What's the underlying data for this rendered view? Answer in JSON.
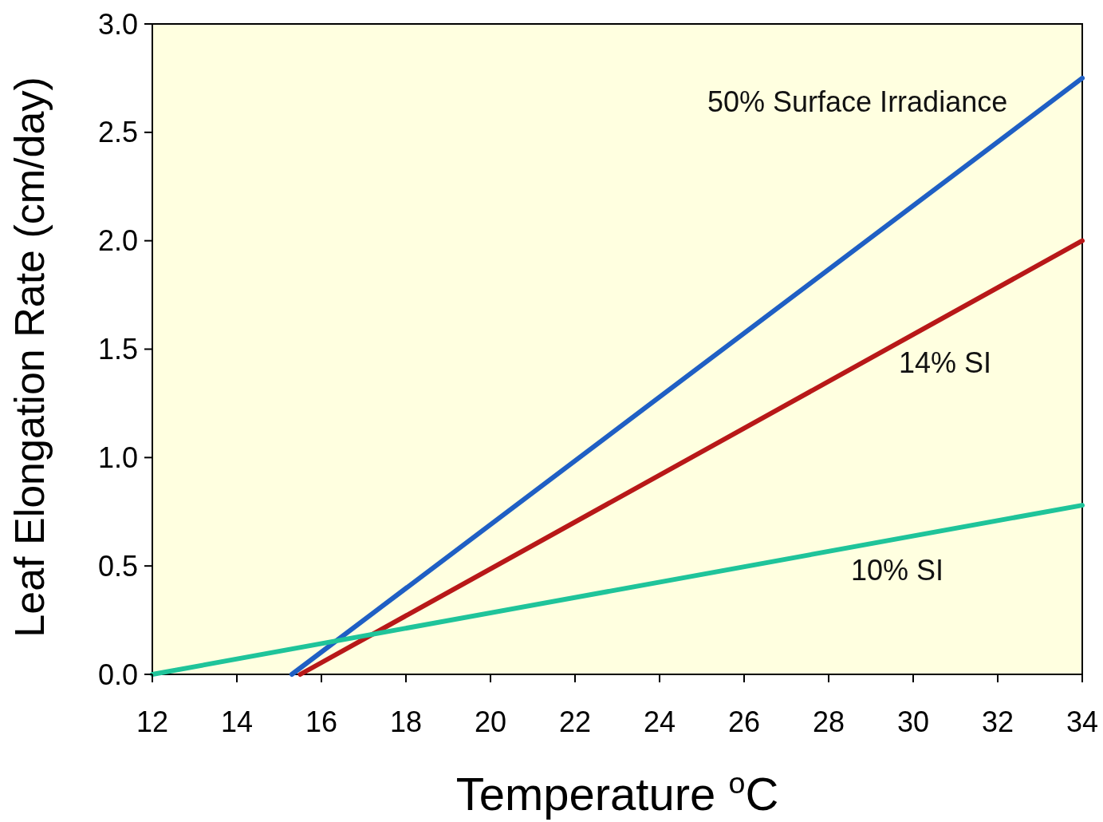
{
  "chart_data": {
    "type": "line",
    "xlabel": "Temperature $^{o}$C",
    "ylabel": "Leaf Elongation Rate  (cm/day)",
    "xlim": [
      12,
      34
    ],
    "ylim": [
      0,
      3.0
    ],
    "xticks": [
      12,
      14,
      16,
      18,
      20,
      22,
      24,
      26,
      28,
      30,
      32,
      34
    ],
    "yticks": [
      {
        "value": 0,
        "label": "0.0"
      },
      {
        "value": 0.5,
        "label": "0.5"
      },
      {
        "value": 1,
        "label": "1.0"
      },
      {
        "value": 1.5,
        "label": "1.5"
      },
      {
        "value": 2,
        "label": "2.0"
      },
      {
        "value": 2.5,
        "label": "2.5"
      },
      {
        "value": 3,
        "label": "3.0"
      }
    ],
    "grid": false,
    "marker": "none",
    "line_style": "solid",
    "series": [
      {
        "name": "50% Surface Irradiance",
        "color": "#1f5fc4",
        "x": [
          15.3,
          34
        ],
        "values": [
          0,
          2.75
        ]
      },
      {
        "name": "14% SI",
        "color": "#b81818",
        "x": [
          15.5,
          34
        ],
        "values": [
          0,
          2.0
        ]
      },
      {
        "name": "10% SI",
        "color": "#1fc49a",
        "x": [
          12,
          34
        ],
        "values": [
          0,
          0.78
        ]
      }
    ]
  }
}
